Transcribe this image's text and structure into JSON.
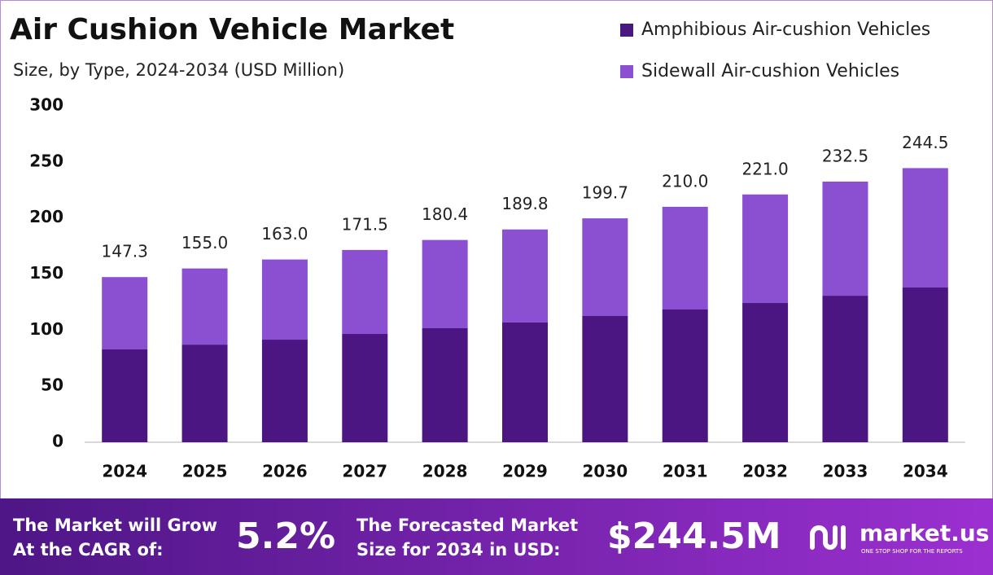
{
  "chart_data": {
    "type": "stacked-bar",
    "title": "Air Cushion Vehicle Market",
    "subtitle": "Size, by Type, 2024-2034 (USD Million)",
    "categories": [
      "2024",
      "2025",
      "2026",
      "2027",
      "2028",
      "2029",
      "2030",
      "2031",
      "2032",
      "2033",
      "2034"
    ],
    "series": [
      {
        "name": "Amphibious Air-cushion Vehicles",
        "color": "#4b1681",
        "values": [
          82.8,
          87.1,
          91.5,
          96.6,
          101.7,
          106.8,
          112.6,
          118.4,
          124.2,
          130.7,
          138.0
        ]
      },
      {
        "name": "Sidewall Air-cushion Vehicles",
        "color": "#8b4fd1",
        "values": [
          64.5,
          67.9,
          71.5,
          74.9,
          78.7,
          83.0,
          87.1,
          91.6,
          96.8,
          101.8,
          106.5
        ]
      }
    ],
    "totals": [
      147.3,
      155.0,
      163.0,
      171.5,
      180.4,
      189.8,
      199.7,
      210.0,
      221.0,
      232.5,
      244.5
    ],
    "total_labels": [
      "147.3",
      "155.0",
      "163.0",
      "171.5",
      "180.4",
      "189.8",
      "199.7",
      "210.0",
      "221.0",
      "232.5",
      "244.5"
    ],
    "ylim": [
      0,
      300
    ],
    "yticks": [
      0,
      50,
      100,
      150,
      200,
      250,
      300
    ],
    "grid": false,
    "legend": "top-right"
  },
  "footer": {
    "cagr_text_1": "The Market will Grow",
    "cagr_text_2": "At the CAGR of:",
    "cagr": "5.2%",
    "forecast_text_1": "The Forecasted Market",
    "forecast_text_2": "Size for 2034 in USD:",
    "forecast": "$244.5M",
    "brand": "market.us",
    "tagline": "ONE STOP SHOP FOR THE REPORTS"
  }
}
